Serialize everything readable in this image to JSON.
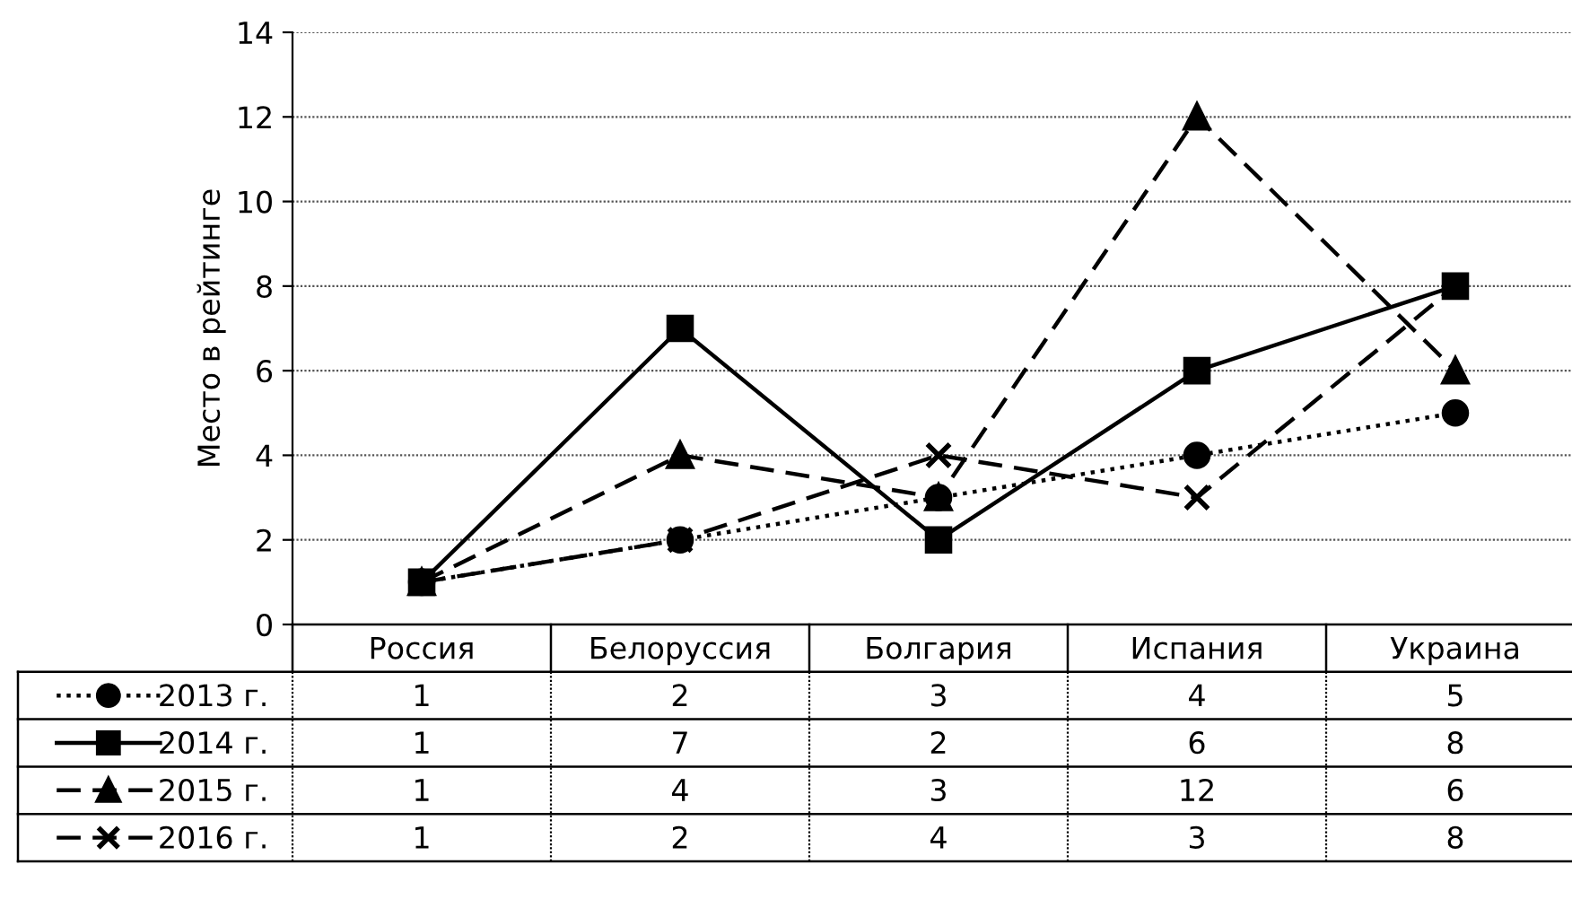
{
  "chart_data": {
    "type": "line",
    "ylabel": "Место в рейтинге",
    "categories": [
      "Россия",
      "Белоруссия",
      "Болгария",
      "Испания",
      "Украина"
    ],
    "series": [
      {
        "name": "2013 г.",
        "color": "#000000",
        "values": [
          1,
          2,
          3,
          4,
          5
        ],
        "marker": "circle",
        "line_style": "dotted"
      },
      {
        "name": "2014 г.",
        "color": "#000000",
        "values": [
          1,
          7,
          2,
          6,
          8
        ],
        "marker": "square",
        "line_style": "solid"
      },
      {
        "name": "2015 г.",
        "color": "#000000",
        "values": [
          1,
          4,
          3,
          12,
          6
        ],
        "marker": "triangle",
        "line_style": "dashed"
      },
      {
        "name": "2016 г.",
        "color": "#000000",
        "values": [
          1,
          2,
          4,
          3,
          8
        ],
        "marker": "cross",
        "line_style": "dashed"
      }
    ],
    "ylim": [
      0,
      14
    ],
    "yticks": [
      0,
      2,
      4,
      6,
      8,
      10,
      12,
      14
    ],
    "grid": "y",
    "legend": "bottom",
    "data_labels": true
  }
}
